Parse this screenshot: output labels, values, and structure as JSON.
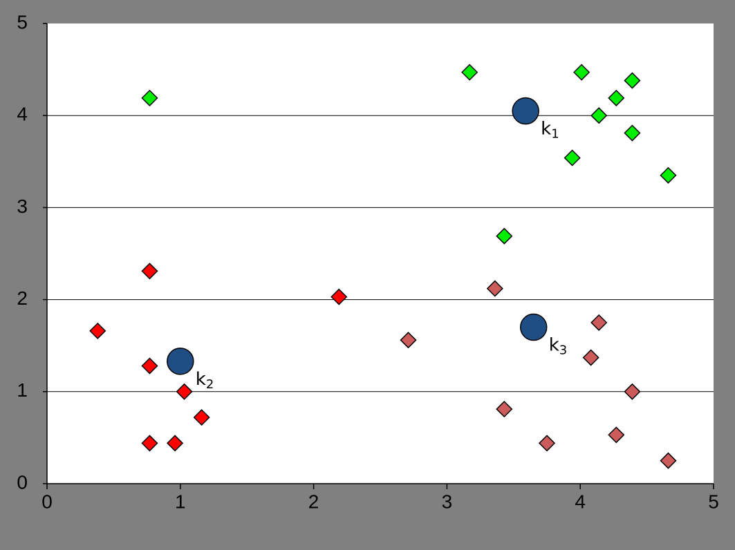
{
  "chart_data": {
    "type": "scatter",
    "xlim": [
      0,
      5
    ],
    "ylim": [
      0,
      5
    ],
    "xticks": [
      0,
      1,
      2,
      3,
      4,
      5
    ],
    "yticks": [
      0,
      1,
      2,
      3,
      4,
      5
    ],
    "grid": true,
    "series": [
      {
        "color": "#00ee00",
        "marker": "diamond",
        "x": [
          3.17,
          0.77,
          4.01,
          4.39,
          4.27,
          4.14,
          4.39,
          3.94,
          4.66,
          3.43
        ],
        "values": [
          4.47,
          4.19,
          4.47,
          4.38,
          4.19,
          4.0,
          3.81,
          3.54,
          3.35,
          2.69
        ]
      },
      {
        "color": "#ff0000",
        "marker": "diamond",
        "x": [
          0.77,
          0.38,
          2.19,
          0.77,
          1.03,
          1.16,
          0.77,
          0.96
        ],
        "values": [
          2.31,
          1.66,
          2.03,
          1.28,
          1.0,
          0.72,
          0.44,
          0.44
        ]
      },
      {
        "color": "#cc5c5c",
        "marker": "diamond",
        "x": [
          3.36,
          2.71,
          4.14,
          4.08,
          4.39,
          3.43,
          3.75,
          4.27,
          4.66
        ],
        "values": [
          2.12,
          1.56,
          1.75,
          1.37,
          1.0,
          0.81,
          0.44,
          0.53,
          0.25
        ]
      },
      {
        "color": "#1f4e85",
        "marker": "circle",
        "x": [
          3.59,
          1.0,
          3.65
        ],
        "values": [
          4.05,
          1.33,
          1.7
        ],
        "labels": [
          {
            "base": "k",
            "sub": "1"
          },
          {
            "base": "k",
            "sub": "2"
          },
          {
            "base": "k",
            "sub": "3"
          }
        ]
      }
    ]
  }
}
